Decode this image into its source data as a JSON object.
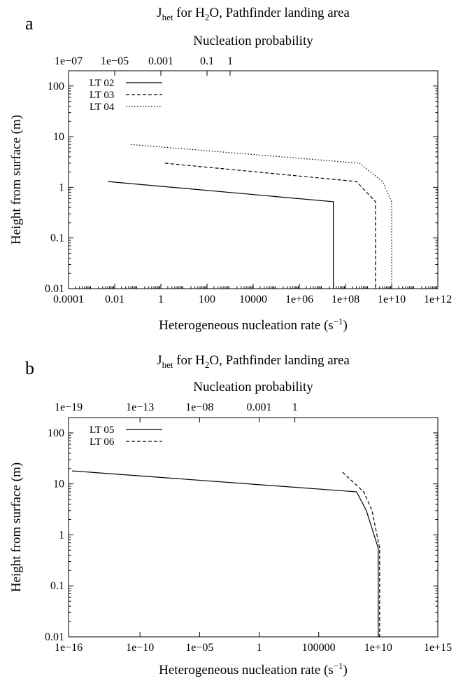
{
  "chart_data": [
    {
      "type": "line",
      "panel_label": "a",
      "title": {
        "main": "J",
        "sub": "het",
        "text_before_sub": " for H",
        "sub2": "2",
        "rest": "O, Pathfinder landing area"
      },
      "top_axis_label": "Nucleation probability",
      "xlabel": {
        "main": "Heterogeneous nucleation rate (s",
        "sup": "−1",
        "close": ")"
      },
      "ylabel": "Height from surface (m)",
      "xscale": "log",
      "yscale": "log",
      "xlim": [
        0.0001,
        1000000000000.0
      ],
      "ylim": [
        0.01,
        200
      ],
      "x_ticks": [
        {
          "value": 0.0001,
          "label": "0.0001"
        },
        {
          "value": 0.01,
          "label": "0.01"
        },
        {
          "value": 1,
          "label": "1"
        },
        {
          "value": 100,
          "label": "100"
        },
        {
          "value": 10000,
          "label": "10000"
        },
        {
          "value": 1000000.0,
          "label": "1e+06"
        },
        {
          "value": 100000000.0,
          "label": "1e+08"
        },
        {
          "value": 10000000000.0,
          "label": "1e+10"
        },
        {
          "value": 1000000000000.0,
          "label": "1e+12"
        }
      ],
      "y_ticks": [
        {
          "value": 0.01,
          "label": "0.01"
        },
        {
          "value": 0.1,
          "label": "0.1"
        },
        {
          "value": 1,
          "label": "1"
        },
        {
          "value": 10,
          "label": "10"
        },
        {
          "value": 100,
          "label": "100"
        }
      ],
      "top_ticks": [
        {
          "value": 0.0001,
          "label": "1e−07"
        },
        {
          "value": 0.01,
          "label": "1e−05"
        },
        {
          "value": 1,
          "label": "0.001"
        },
        {
          "value": 100,
          "label": "0.1"
        },
        {
          "value": 1000,
          "label": "1"
        }
      ],
      "legend_position": "top-left",
      "series": [
        {
          "name": "LT 02",
          "dash": "",
          "points": [
            [
              0.005,
              1.3
            ],
            [
              30000000.0,
              0.52
            ],
            [
              30000000.0,
              0.01
            ]
          ]
        },
        {
          "name": "LT 03",
          "dash": "5,3",
          "points": [
            [
              1.5,
              3.0
            ],
            [
              300000000.0,
              1.3
            ],
            [
              2000000000.0,
              0.52
            ],
            [
              2000000000.0,
              0.01
            ]
          ]
        },
        {
          "name": "LT 04",
          "dash": "1.5,2.5",
          "points": [
            [
              0.05,
              7.0
            ],
            [
              400000000.0,
              3.0
            ],
            [
              4000000000.0,
              1.3
            ],
            [
              10000000000.0,
              0.52
            ],
            [
              10000000000.0,
              0.01
            ]
          ]
        }
      ]
    },
    {
      "type": "line",
      "panel_label": "b",
      "title": {
        "main": "J",
        "sub": "het",
        "text_before_sub": " for H",
        "sub2": "2",
        "rest": "O, Pathfinder landing area"
      },
      "top_axis_label": "Nucleation probability",
      "xlabel": {
        "main": "Heterogeneous nucleation rate (s",
        "sup": "−1",
        "close": ")"
      },
      "ylabel": "Height from surface (m)",
      "xscale": "log",
      "yscale": "log",
      "xlim": [
        1e-16,
        1000000000000000.0
      ],
      "ylim": [
        0.01,
        200
      ],
      "x_ticks": [
        {
          "value": 1e-16,
          "label": "1e−16"
        },
        {
          "value": 1e-10,
          "label": "1e−10"
        },
        {
          "value": 1e-05,
          "label": "1e−05"
        },
        {
          "value": 1,
          "label": "1"
        },
        {
          "value": 100000,
          "label": "100000"
        },
        {
          "value": 10000000000.0,
          "label": "1e+10"
        },
        {
          "value": 1000000000000000.0,
          "label": "1e+15"
        }
      ],
      "y_ticks": [
        {
          "value": 0.01,
          "label": "0.01"
        },
        {
          "value": 0.1,
          "label": "0.1"
        },
        {
          "value": 1,
          "label": "1"
        },
        {
          "value": 10,
          "label": "10"
        },
        {
          "value": 100,
          "label": "100"
        }
      ],
      "top_ticks": [
        {
          "value": 1e-16,
          "label": "1e−19"
        },
        {
          "value": 1e-10,
          "label": "1e−13"
        },
        {
          "value": 1e-05,
          "label": "1e−08"
        },
        {
          "value": 1,
          "label": "0.001"
        },
        {
          "value": 1000,
          "label": "1"
        }
      ],
      "legend_position": "top-left",
      "series": [
        {
          "name": "LT 05",
          "dash": "",
          "points": [
            [
              2e-16,
              18
            ],
            [
              150000000.0,
              7.0
            ],
            [
              1000000000.0,
              3.0
            ],
            [
              10000000000.0,
              0.55
            ],
            [
              10000000000.0,
              0.01
            ]
          ]
        },
        {
          "name": "LT 06",
          "dash": "5,3",
          "points": [
            [
              10000000.0,
              17
            ],
            [
              600000000.0,
              7.0
            ],
            [
              3000000000.0,
              3.0
            ],
            [
              13000000000.0,
              0.55
            ],
            [
              13000000000.0,
              0.01
            ]
          ]
        }
      ]
    }
  ]
}
